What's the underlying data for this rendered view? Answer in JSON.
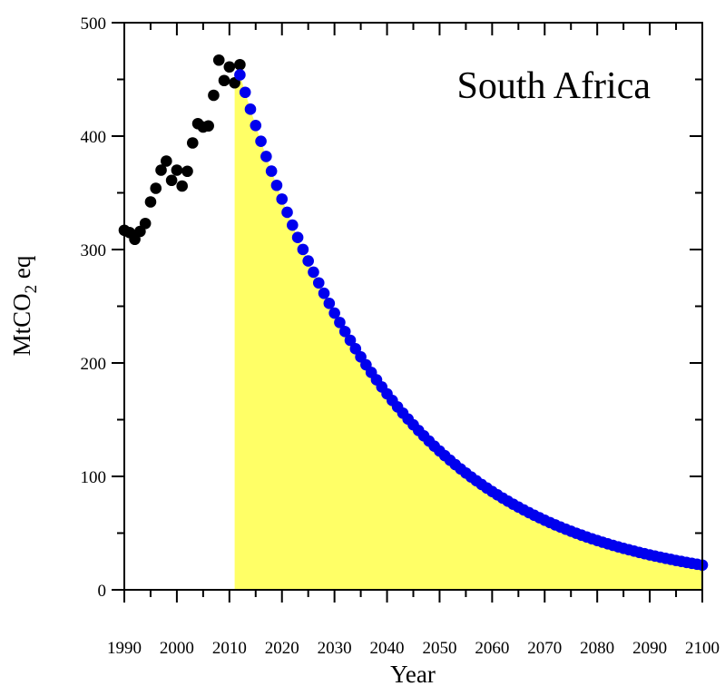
{
  "chart_data": {
    "type": "scatter",
    "title": "South Africa",
    "xlabel": "Year",
    "ylabel_main": "MtCO",
    "ylabel_sub": "2",
    "ylabel_tail": " eq",
    "xlim": [
      1990,
      2100
    ],
    "ylim": [
      0,
      500
    ],
    "x_ticks": [
      1990,
      2000,
      2010,
      2020,
      2030,
      2040,
      2050,
      2060,
      2070,
      2080,
      2090,
      2100
    ],
    "y_ticks": [
      0,
      100,
      200,
      300,
      400,
      500
    ],
    "series": [
      {
        "role": "historical",
        "color": "#000000",
        "x": [
          1990,
          1991,
          1992,
          1993,
          1994,
          1995,
          1996,
          1997,
          1998,
          1999,
          2000,
          2001,
          2002,
          2003,
          2004,
          2005,
          2006,
          2007,
          2008,
          2009,
          2010,
          2011,
          2012
        ],
        "y": [
          317,
          315,
          309,
          316,
          323,
          342,
          354,
          370,
          378,
          361,
          370,
          356,
          369,
          394,
          411,
          408,
          409,
          436,
          467,
          449,
          461,
          447,
          463
        ]
      },
      {
        "role": "projection",
        "color": "#0000ee",
        "decay_rate": 0.0345,
        "x_start": 2012,
        "x_end": 2100,
        "y_start": 454
      }
    ],
    "fill": {
      "color": "#ffff66",
      "x_from": 2011
    }
  }
}
